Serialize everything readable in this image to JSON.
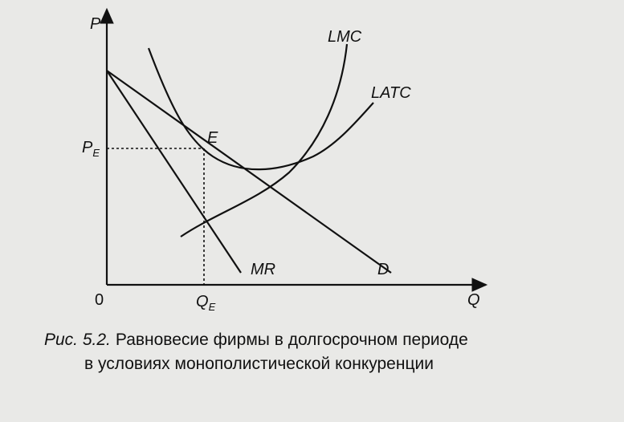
{
  "axes": {
    "y_label": "P",
    "x_label": "Q",
    "origin": "0"
  },
  "curves": {
    "lmc": "LMC",
    "latc": "LATC",
    "mr": "MR",
    "d": "D"
  },
  "points": {
    "e": "E",
    "pe": {
      "main": "P",
      "sub": "E"
    },
    "qe": {
      "main": "Q",
      "sub": "E"
    }
  },
  "caption": {
    "number": "Рис. 5.2.",
    "line1": "Равновесие фирмы в долгосрочном периоде",
    "line2": "в условиях монополистической конкуренции"
  }
}
